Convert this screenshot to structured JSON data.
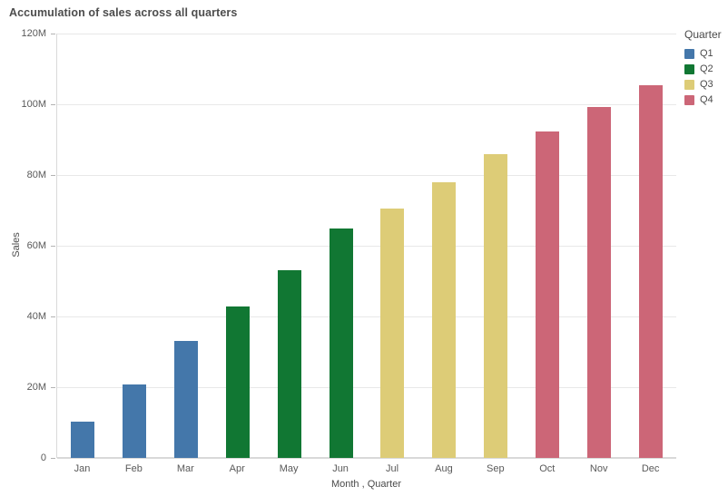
{
  "title": "Accumulation of sales across all quarters",
  "axes": {
    "y_label": "Sales",
    "x_label": "Month , Quarter",
    "y_ticks": [
      "0",
      "20M",
      "40M",
      "60M",
      "80M",
      "100M",
      "120M"
    ]
  },
  "legend": {
    "title": "Quarter",
    "items": [
      {
        "label": "Q1",
        "color": "#4477aa"
      },
      {
        "label": "Q2",
        "color": "#117733"
      },
      {
        "label": "Q3",
        "color": "#ddcc77"
      },
      {
        "label": "Q4",
        "color": "#cc6677"
      }
    ]
  },
  "chart_data": {
    "type": "bar",
    "title": "Accumulation of sales across all quarters",
    "xlabel": "Month , Quarter",
    "ylabel": "Sales",
    "unit": "millions",
    "ylim": [
      0,
      120
    ],
    "grid": true,
    "legend_position": "top-right",
    "categories": [
      "Jan",
      "Feb",
      "Mar",
      "Apr",
      "May",
      "Jun",
      "Jul",
      "Aug",
      "Sep",
      "Oct",
      "Nov",
      "Dec"
    ],
    "values_millions": [
      10.3,
      20.8,
      33.2,
      42.7,
      53.2,
      65.0,
      70.5,
      78.0,
      86.0,
      92.3,
      99.2,
      105.4
    ],
    "quarter_of_month": [
      "Q1",
      "Q1",
      "Q1",
      "Q2",
      "Q2",
      "Q2",
      "Q3",
      "Q3",
      "Q3",
      "Q4",
      "Q4",
      "Q4"
    ],
    "series_colors": {
      "Q1": "#4477aa",
      "Q2": "#117733",
      "Q3": "#ddcc77",
      "Q4": "#cc6677"
    }
  }
}
